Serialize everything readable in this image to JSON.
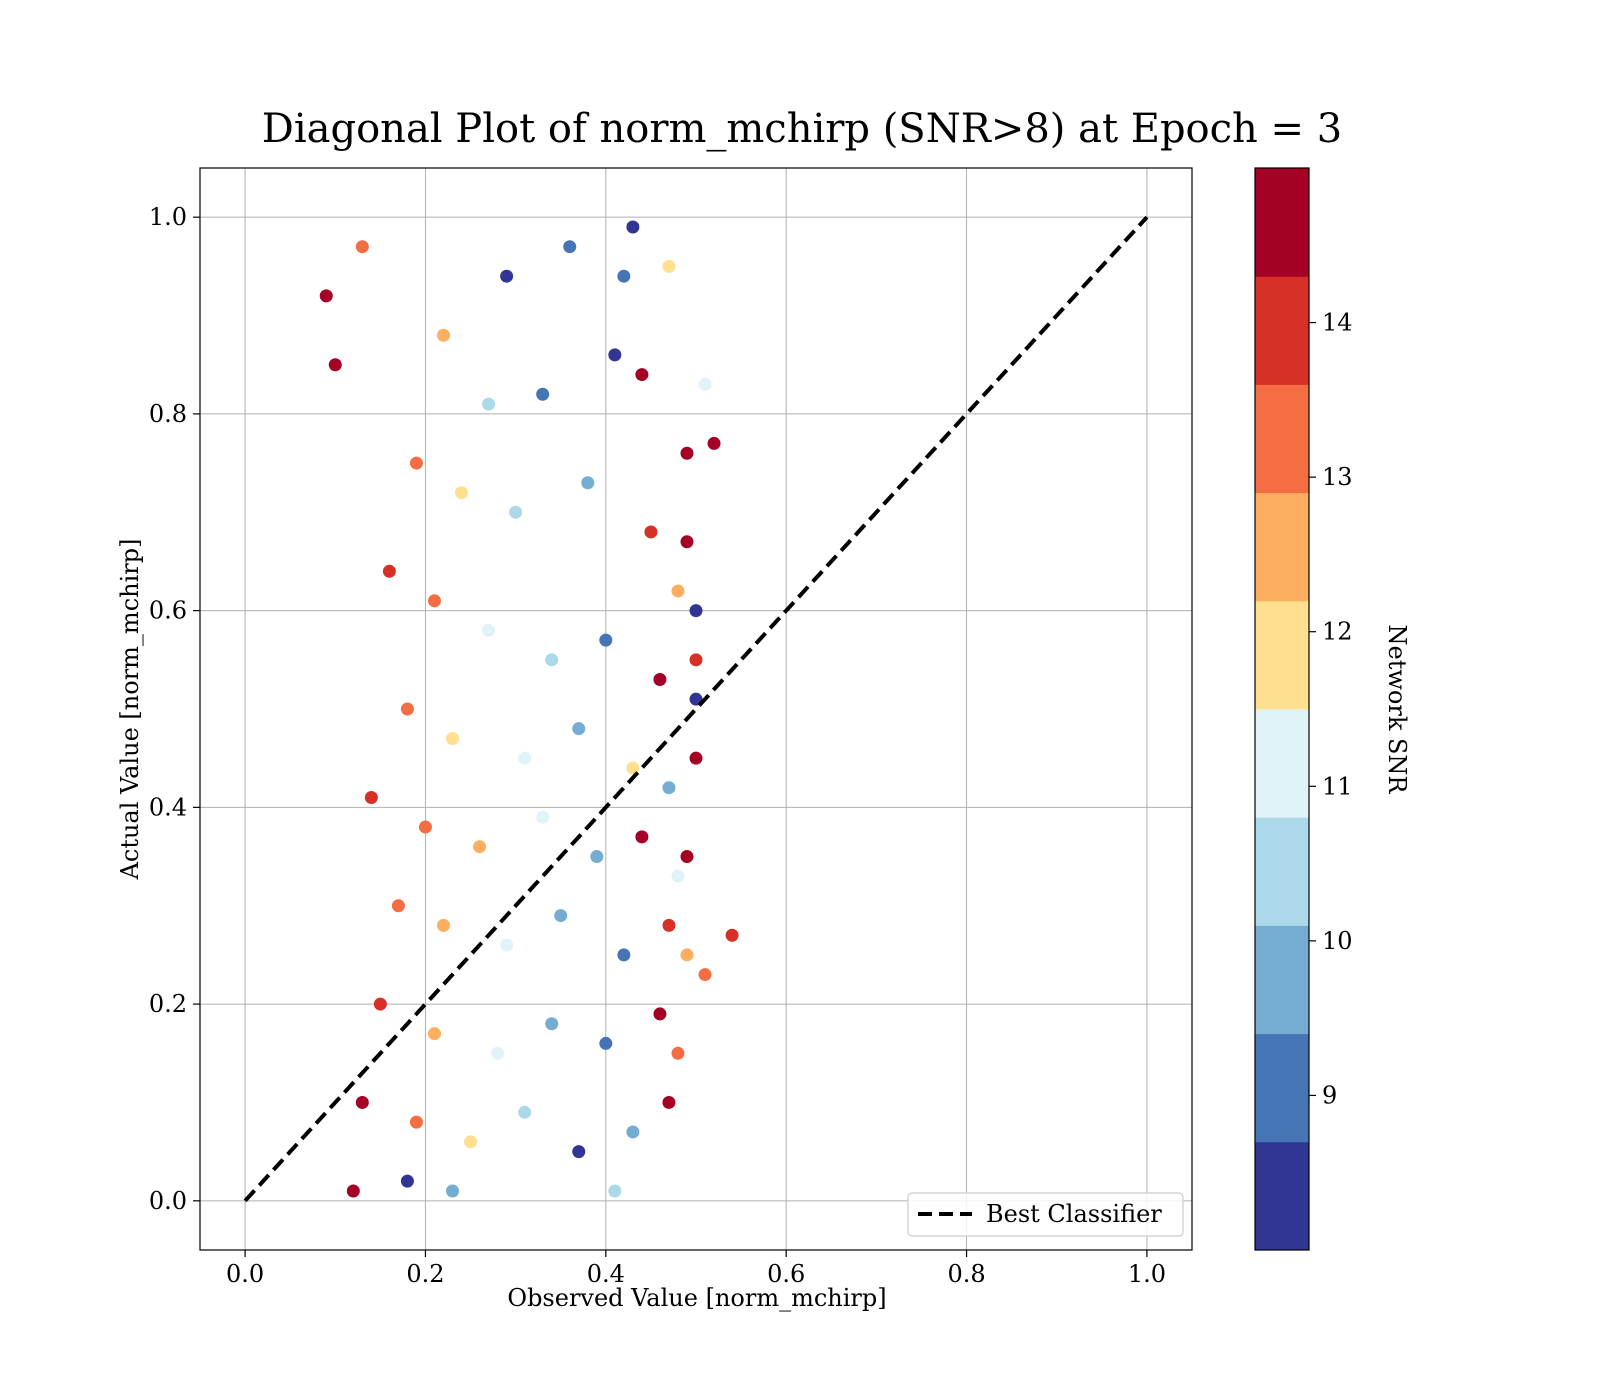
{
  "chart_data": {
    "type": "scatter",
    "title": "Diagonal Plot of norm_mchirp (SNR>8) at Epoch = 3",
    "xlabel": "Observed Value [norm_mchirp]",
    "ylabel": "Actual Value [norm_mchirp]",
    "xlim": [
      -0.05,
      1.05
    ],
    "ylim": [
      -0.05,
      1.05
    ],
    "x_ticks": [
      0.0,
      0.2,
      0.4,
      0.6,
      0.8,
      1.0
    ],
    "y_ticks": [
      0.0,
      0.2,
      0.4,
      0.6,
      0.8,
      1.0
    ],
    "x_tick_labels": [
      "0.0",
      "0.2",
      "0.4",
      "0.6",
      "0.8",
      "1.0"
    ],
    "y_tick_labels": [
      "0.0",
      "0.2",
      "0.4",
      "0.6",
      "0.8",
      "1.0"
    ],
    "grid": true,
    "legend": {
      "position": "lower-right",
      "entries": [
        "Best Classifier"
      ]
    },
    "reference_line": {
      "name": "Best Classifier",
      "style": "dashed",
      "color": "#000000",
      "x": [
        0.0,
        1.0
      ],
      "y": [
        0.0,
        1.0
      ]
    },
    "colorbar": {
      "label": "Network SNR",
      "range": [
        8,
        15
      ],
      "ticks": [
        9,
        10,
        11,
        12,
        13,
        14
      ],
      "tick_labels": [
        "9",
        "10",
        "11",
        "12",
        "13",
        "14"
      ],
      "colors": [
        "#313695",
        "#4575b4",
        "#74add1",
        "#abd9e9",
        "#e0f3f8",
        "#fee090",
        "#fdae61",
        "#f46d43",
        "#d73027",
        "#a50026"
      ]
    },
    "points": [
      {
        "x": 0.29,
        "y": 0.94,
        "snr": 8.4
      },
      {
        "x": 0.36,
        "y": 0.97,
        "snr": 8.9
      },
      {
        "x": 0.22,
        "y": 0.88,
        "snr": 12.3
      },
      {
        "x": 0.09,
        "y": 0.92,
        "snr": 14.9
      },
      {
        "x": 0.1,
        "y": 0.85,
        "snr": 14.8
      },
      {
        "x": 0.13,
        "y": 0.97,
        "snr": 13.1
      },
      {
        "x": 0.27,
        "y": 0.81,
        "snr": 10.4
      },
      {
        "x": 0.33,
        "y": 0.82,
        "snr": 9.3
      },
      {
        "x": 0.41,
        "y": 0.86,
        "snr": 8.6
      },
      {
        "x": 0.44,
        "y": 0.84,
        "snr": 14.5
      },
      {
        "x": 0.49,
        "y": 0.76,
        "snr": 14.7
      },
      {
        "x": 0.52,
        "y": 0.77,
        "snr": 14.6
      },
      {
        "x": 0.47,
        "y": 0.95,
        "snr": 12.1
      },
      {
        "x": 0.51,
        "y": 0.83,
        "snr": 11.2
      },
      {
        "x": 0.19,
        "y": 0.75,
        "snr": 13.3
      },
      {
        "x": 0.24,
        "y": 0.72,
        "snr": 11.8
      },
      {
        "x": 0.3,
        "y": 0.7,
        "snr": 10.7
      },
      {
        "x": 0.38,
        "y": 0.73,
        "snr": 9.6
      },
      {
        "x": 0.45,
        "y": 0.68,
        "snr": 14.1
      },
      {
        "x": 0.49,
        "y": 0.67,
        "snr": 14.8
      },
      {
        "x": 0.5,
        "y": 0.6,
        "snr": 8.7
      },
      {
        "x": 0.48,
        "y": 0.62,
        "snr": 12.6
      },
      {
        "x": 0.16,
        "y": 0.64,
        "snr": 13.8
      },
      {
        "x": 0.21,
        "y": 0.61,
        "snr": 12.9
      },
      {
        "x": 0.27,
        "y": 0.58,
        "snr": 11.1
      },
      {
        "x": 0.34,
        "y": 0.55,
        "snr": 10.2
      },
      {
        "x": 0.4,
        "y": 0.57,
        "snr": 9.1
      },
      {
        "x": 0.46,
        "y": 0.53,
        "snr": 14.4
      },
      {
        "x": 0.5,
        "y": 0.55,
        "snr": 14.2
      },
      {
        "x": 0.5,
        "y": 0.51,
        "snr": 8.3
      },
      {
        "x": 0.18,
        "y": 0.5,
        "snr": 13.5
      },
      {
        "x": 0.23,
        "y": 0.47,
        "snr": 12.2
      },
      {
        "x": 0.31,
        "y": 0.45,
        "snr": 10.8
      },
      {
        "x": 0.37,
        "y": 0.48,
        "snr": 9.8
      },
      {
        "x": 0.43,
        "y": 0.44,
        "snr": 11.6
      },
      {
        "x": 0.5,
        "y": 0.45,
        "snr": 14.3
      },
      {
        "x": 0.47,
        "y": 0.42,
        "snr": 9.5
      },
      {
        "x": 0.14,
        "y": 0.41,
        "snr": 14.1
      },
      {
        "x": 0.2,
        "y": 0.38,
        "snr": 13.2
      },
      {
        "x": 0.26,
        "y": 0.36,
        "snr": 12.4
      },
      {
        "x": 0.33,
        "y": 0.39,
        "snr": 10.9
      },
      {
        "x": 0.39,
        "y": 0.35,
        "snr": 9.4
      },
      {
        "x": 0.44,
        "y": 0.37,
        "snr": 14.6
      },
      {
        "x": 0.49,
        "y": 0.35,
        "snr": 14.9
      },
      {
        "x": 0.48,
        "y": 0.33,
        "snr": 11.4
      },
      {
        "x": 0.17,
        "y": 0.3,
        "snr": 13.6
      },
      {
        "x": 0.22,
        "y": 0.28,
        "snr": 12.7
      },
      {
        "x": 0.29,
        "y": 0.26,
        "snr": 11.3
      },
      {
        "x": 0.35,
        "y": 0.29,
        "snr": 10.1
      },
      {
        "x": 0.42,
        "y": 0.25,
        "snr": 8.8
      },
      {
        "x": 0.47,
        "y": 0.28,
        "snr": 14.2
      },
      {
        "x": 0.54,
        "y": 0.27,
        "snr": 14.1
      },
      {
        "x": 0.51,
        "y": 0.23,
        "snr": 13.4
      },
      {
        "x": 0.49,
        "y": 0.25,
        "snr": 12.8
      },
      {
        "x": 0.15,
        "y": 0.2,
        "snr": 14.0
      },
      {
        "x": 0.21,
        "y": 0.17,
        "snr": 12.5
      },
      {
        "x": 0.28,
        "y": 0.15,
        "snr": 11.0
      },
      {
        "x": 0.34,
        "y": 0.18,
        "snr": 9.9
      },
      {
        "x": 0.4,
        "y": 0.16,
        "snr": 9.2
      },
      {
        "x": 0.46,
        "y": 0.19,
        "snr": 14.5
      },
      {
        "x": 0.48,
        "y": 0.15,
        "snr": 13.0
      },
      {
        "x": 0.13,
        "y": 0.1,
        "snr": 14.7
      },
      {
        "x": 0.19,
        "y": 0.08,
        "snr": 13.3
      },
      {
        "x": 0.25,
        "y": 0.06,
        "snr": 11.7
      },
      {
        "x": 0.31,
        "y": 0.09,
        "snr": 10.5
      },
      {
        "x": 0.37,
        "y": 0.05,
        "snr": 8.5
      },
      {
        "x": 0.43,
        "y": 0.07,
        "snr": 9.7
      },
      {
        "x": 0.47,
        "y": 0.1,
        "snr": 14.3
      },
      {
        "x": 0.12,
        "y": 0.01,
        "snr": 14.6
      },
      {
        "x": 0.18,
        "y": 0.02,
        "snr": 8.6
      },
      {
        "x": 0.23,
        "y": 0.01,
        "snr": 9.5
      },
      {
        "x": 0.41,
        "y": 0.01,
        "snr": 10.3
      },
      {
        "x": 0.43,
        "y": 0.99,
        "snr": 8.4
      },
      {
        "x": 0.42,
        "y": 0.94,
        "snr": 8.9
      }
    ]
  }
}
